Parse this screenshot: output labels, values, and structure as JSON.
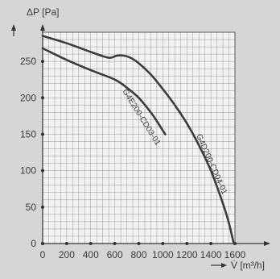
{
  "chart_data": {
    "type": "line",
    "ylabel": "ΔP [Pa]",
    "xlabel": "V̇ [m³/h]",
    "xlim": [
      0,
      1600
    ],
    "ylim": [
      0,
      290
    ],
    "x_ticks": [
      0,
      200,
      400,
      600,
      800,
      1000,
      1200,
      1400,
      1600
    ],
    "y_ticks": [
      0,
      50,
      100,
      150,
      200,
      250
    ],
    "grid": true,
    "series": [
      {
        "name": "G4E200-CD03-01",
        "color": "#3c3c3c",
        "x": [
          0,
          200,
          400,
          600,
          700,
          800,
          900,
          950,
          1020
        ],
        "y": [
          268,
          252,
          238,
          225,
          214,
          200,
          180,
          168,
          150
        ]
      },
      {
        "name": "G4D200-CD04-01",
        "color": "#3c3c3c",
        "x": [
          0,
          200,
          400,
          550,
          620,
          700,
          780,
          900,
          1000,
          1100,
          1200,
          1300,
          1400,
          1500,
          1550,
          1590
        ],
        "y": [
          285,
          275,
          263,
          255,
          258,
          257,
          250,
          232,
          212,
          190,
          165,
          135,
          100,
          55,
          28,
          0
        ]
      }
    ]
  }
}
